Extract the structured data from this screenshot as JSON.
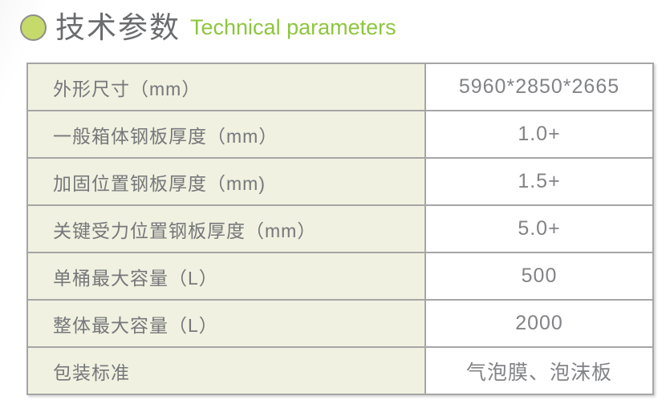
{
  "header": {
    "bullet_icon": "circle-bullet",
    "title_zh": "技术参数",
    "title_en": "Technical parameters"
  },
  "colors": {
    "accent_green": "#8dc63f",
    "bullet_fill": "#c6d96b",
    "bullet_border": "#8d8d8d",
    "label_cell_bg": "#f0f1e0",
    "table_border": "#a6a6a6",
    "label_text_gray": "#76777a",
    "title_gray": "#6b6c6e"
  },
  "table": {
    "rows": [
      {
        "label": "外形尺寸（mm）",
        "value": "5960*2850*2665"
      },
      {
        "label": "一般箱体钢板厚度（mm）",
        "value": "1.0+"
      },
      {
        "label": "加固位置钢板厚度（mm)",
        "value": "1.5+"
      },
      {
        "label": "关键受力位置钢板厚度（mm）",
        "value": "5.0+"
      },
      {
        "label": "单桶最大容量（L）",
        "value": "500"
      },
      {
        "label": "整体最大容量（L）",
        "value": "2000"
      },
      {
        "label": "包装标准",
        "value": "气泡膜、泡沫板"
      }
    ]
  }
}
